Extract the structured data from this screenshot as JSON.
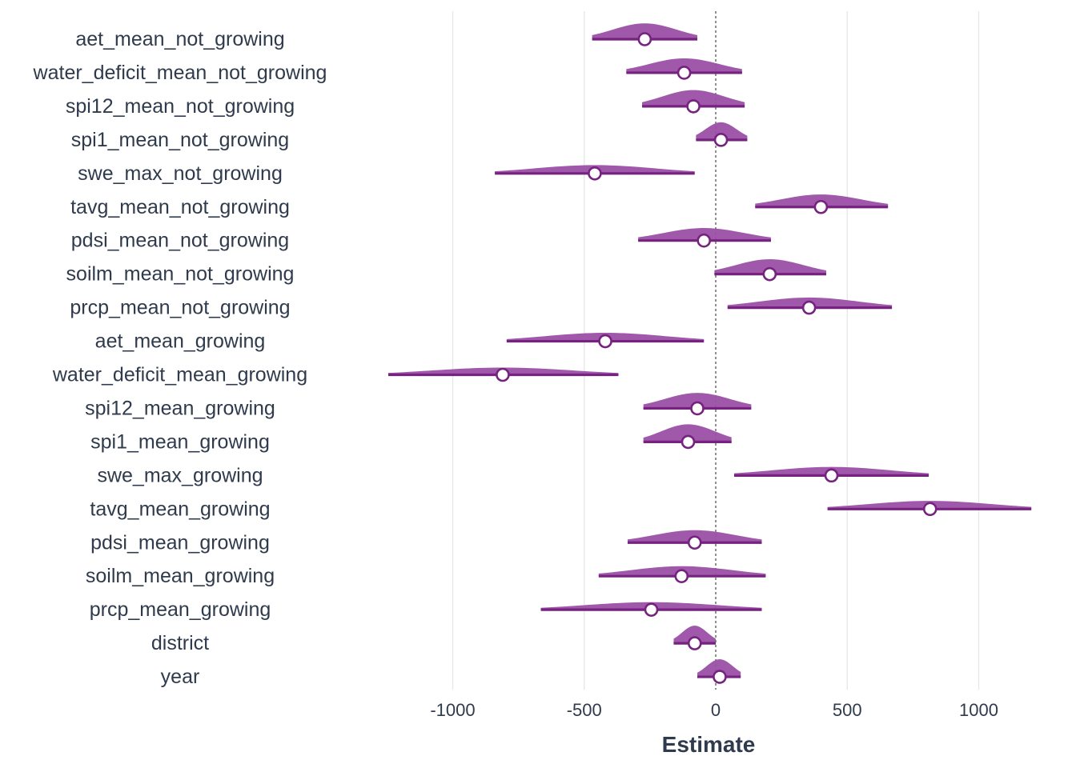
{
  "chart_data": {
    "type": "forest-halfeye",
    "xlabel": "Estimate",
    "ylabel": "",
    "title": "",
    "xlim": [
      -1000,
      1200
    ],
    "xticks": [
      -1000,
      -500,
      0,
      500,
      1000
    ],
    "xtick_labels": [
      "-1000",
      "-500",
      "0",
      "500",
      "1000"
    ],
    "grid": "vertical major",
    "reference_line": 0,
    "colors": {
      "fill": "#9b4fa6",
      "line": "#76227f",
      "point_fill": "#ffffff",
      "grid": "#e6e6e6",
      "text": "#2f3b4c"
    },
    "terms": [
      {
        "label": "aet_mean_not_growing",
        "estimate": -270,
        "lower": -470,
        "upper": -70
      },
      {
        "label": "water_deficit_mean_not_growing",
        "estimate": -120,
        "lower": -340,
        "upper": 100
      },
      {
        "label": "spi12_mean_not_growing",
        "estimate": -85,
        "lower": -280,
        "upper": 110
      },
      {
        "label": "spi1_mean_not_growing",
        "estimate": 20,
        "lower": -75,
        "upper": 120
      },
      {
        "label": "swe_max_not_growing",
        "estimate": -460,
        "lower": -840,
        "upper": -80
      },
      {
        "label": "tavg_mean_not_growing",
        "estimate": 400,
        "lower": 150,
        "upper": 655
      },
      {
        "label": "pdsi_mean_not_growing",
        "estimate": -45,
        "lower": -295,
        "upper": 210
      },
      {
        "label": "soilm_mean_not_growing",
        "estimate": 205,
        "lower": -5,
        "upper": 420
      },
      {
        "label": "prcp_mean_not_growing",
        "estimate": 355,
        "lower": 45,
        "upper": 670
      },
      {
        "label": "aet_mean_growing",
        "estimate": -420,
        "lower": -795,
        "upper": -45
      },
      {
        "label": "water_deficit_mean_growing",
        "estimate": -810,
        "lower": -1245,
        "upper": -370
      },
      {
        "label": "spi12_mean_growing",
        "estimate": -70,
        "lower": -275,
        "upper": 135
      },
      {
        "label": "spi1_mean_growing",
        "estimate": -105,
        "lower": -275,
        "upper": 60
      },
      {
        "label": "swe_max_growing",
        "estimate": 440,
        "lower": 70,
        "upper": 810
      },
      {
        "label": "tavg_mean_growing",
        "estimate": 815,
        "lower": 425,
        "upper": 1200
      },
      {
        "label": "pdsi_mean_growing",
        "estimate": -80,
        "lower": -335,
        "upper": 175
      },
      {
        "label": "soilm_mean_growing",
        "estimate": -130,
        "lower": -445,
        "upper": 190
      },
      {
        "label": "prcp_mean_growing",
        "estimate": -245,
        "lower": -665,
        "upper": 175
      },
      {
        "label": "district",
        "estimate": -80,
        "lower": -160,
        "upper": 0
      },
      {
        "label": "year",
        "estimate": 15,
        "lower": -70,
        "upper": 95
      }
    ]
  }
}
